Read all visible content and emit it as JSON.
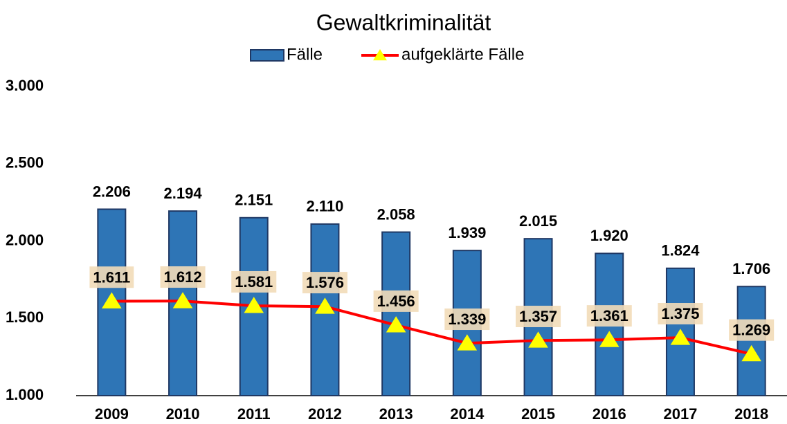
{
  "chart_data": {
    "type": "bar",
    "title": "Gewaltkriminalität",
    "categories": [
      "2009",
      "2010",
      "2011",
      "2012",
      "2013",
      "2014",
      "2015",
      "2016",
      "2017",
      "2018"
    ],
    "series": [
      {
        "name": "Fälle",
        "type": "bar",
        "color": "#2e75b6",
        "values": [
          2206,
          2194,
          2151,
          2110,
          2058,
          1939,
          2015,
          1920,
          1824,
          1706
        ],
        "value_labels": [
          "2.206",
          "2.194",
          "2.151",
          "2.110",
          "2.058",
          "1.939",
          "2.015",
          "1.920",
          "1.824",
          "1.706"
        ]
      },
      {
        "name": "aufgeklärte Fälle",
        "type": "line",
        "color": "#ff0000",
        "marker_color": "#ffff00",
        "values": [
          1611,
          1612,
          1581,
          1576,
          1456,
          1339,
          1357,
          1361,
          1375,
          1269
        ],
        "value_labels": [
          "1.611",
          "1.612",
          "1.581",
          "1.576",
          "1.456",
          "1.339",
          "1.357",
          "1.361",
          "1.375",
          "1.269"
        ]
      }
    ],
    "ylim": [
      1000,
      3000
    ],
    "yticks": [
      {
        "value": 1000,
        "label": "1.000"
      },
      {
        "value": 1500,
        "label": "1.500"
      },
      {
        "value": 2000,
        "label": "2.000"
      },
      {
        "value": 2500,
        "label": "2.500"
      },
      {
        "value": 3000,
        "label": "3.000"
      }
    ],
    "grid": false,
    "legend": "top"
  }
}
